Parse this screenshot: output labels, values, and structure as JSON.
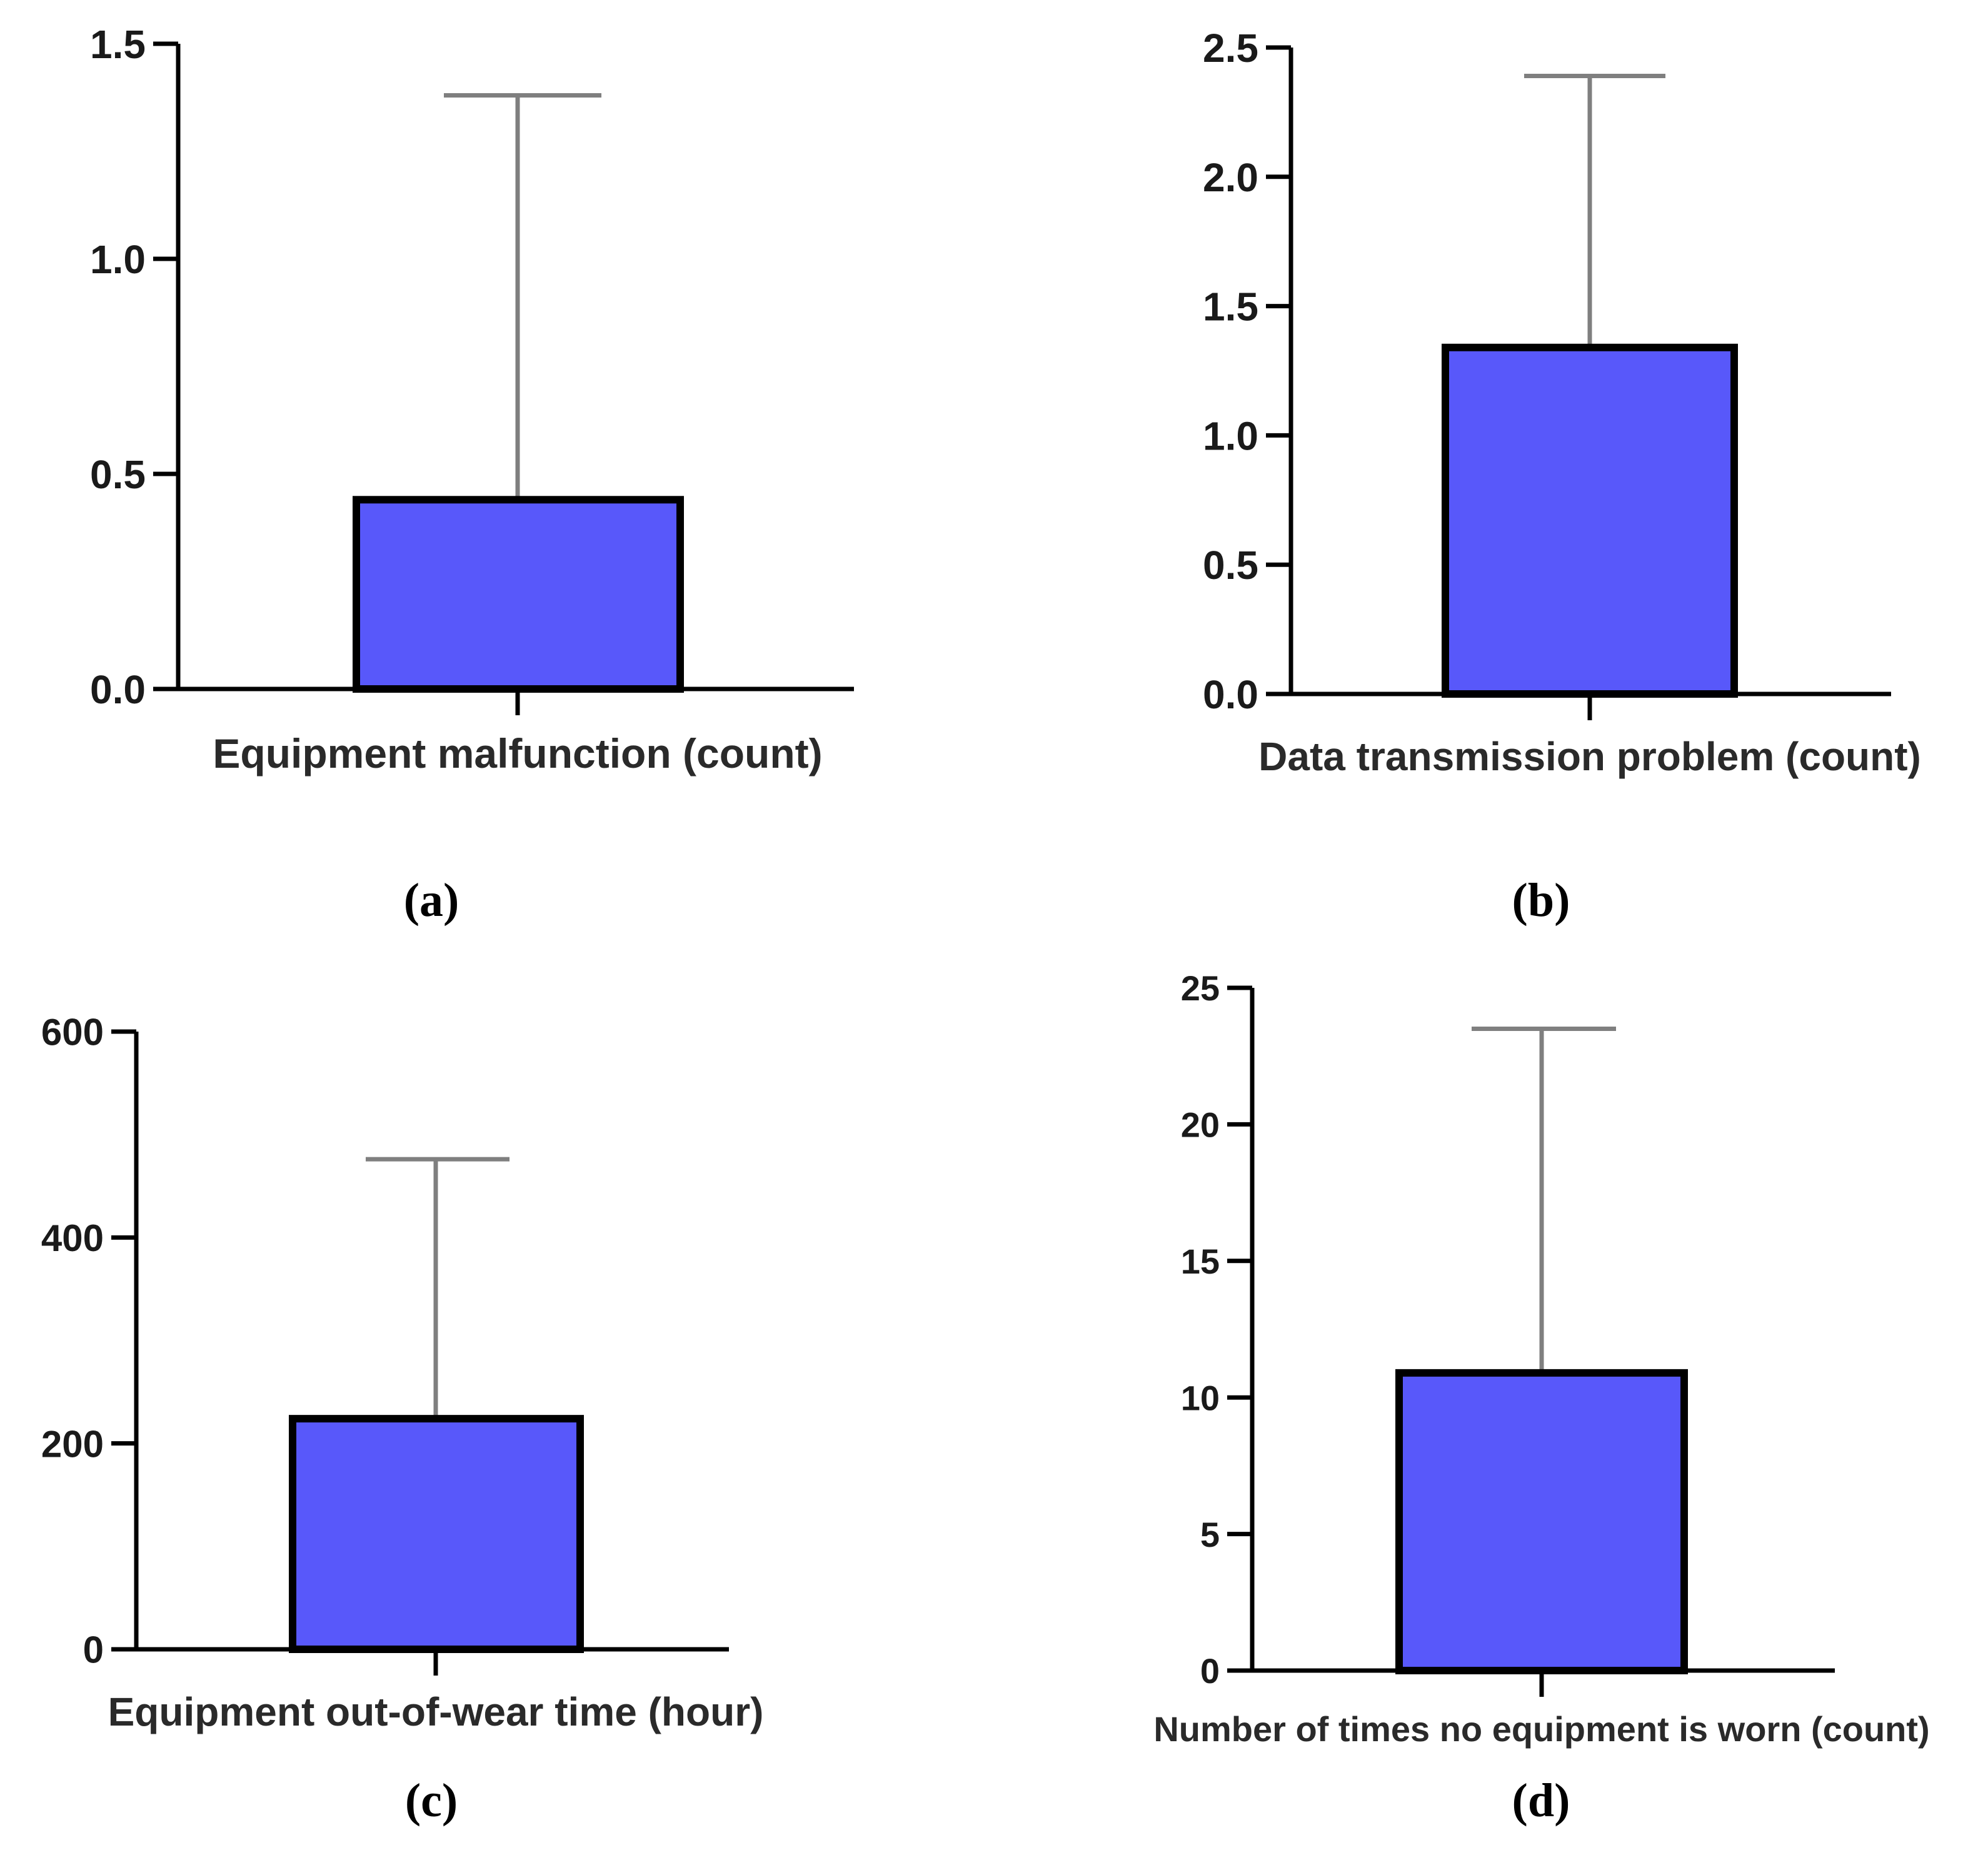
{
  "figure": {
    "bar_color": "#5858FA",
    "bar_edge_color": "#000000",
    "error_color": "#7F7F7F",
    "axis_color": "#000000"
  },
  "chart_data": [
    {
      "panel": "(a)",
      "type": "bar",
      "categories": [
        "Equipment malfunction (count)"
      ],
      "values": [
        0.44
      ],
      "error_upper": [
        1.38
      ],
      "xlabel": "Equipment malfunction (count)",
      "ylabel": "",
      "ylim": [
        0,
        1.5
      ],
      "yticks": [
        0.0,
        0.5,
        1.0,
        1.5
      ],
      "ytick_labels": [
        "0.0",
        "0.5",
        "1.0",
        "1.5"
      ]
    },
    {
      "panel": "(b)",
      "type": "bar",
      "categories": [
        "Data transmission problem (count)"
      ],
      "values": [
        1.34
      ],
      "error_upper": [
        2.39
      ],
      "xlabel": "Data transmission problem (count)",
      "ylabel": "",
      "ylim": [
        0,
        2.5
      ],
      "yticks": [
        0.0,
        0.5,
        1.0,
        1.5,
        2.0,
        2.5
      ],
      "ytick_labels": [
        "0.0",
        "0.5",
        "1.0",
        "1.5",
        "2.0",
        "2.5"
      ]
    },
    {
      "panel": "(c)",
      "type": "bar",
      "categories": [
        "Equipment out-of-wear time (hour)"
      ],
      "values": [
        224
      ],
      "error_upper": [
        476
      ],
      "xlabel": "Equipment out-of-wear time (hour)",
      "ylabel": "",
      "ylim": [
        0,
        600
      ],
      "yticks": [
        0,
        200,
        400,
        600
      ],
      "ytick_labels": [
        "0",
        "200",
        "400",
        "600"
      ]
    },
    {
      "panel": "(d)",
      "type": "bar",
      "categories": [
        "Number of times no equipment is worn (count)"
      ],
      "values": [
        10.9
      ],
      "error_upper": [
        23.5
      ],
      "xlabel": "Number of times no equipment is worn (count)",
      "ylabel": "",
      "ylim": [
        0,
        25
      ],
      "yticks": [
        0,
        5,
        10,
        15,
        20,
        25
      ],
      "ytick_labels": [
        "0",
        "5",
        "10",
        "15",
        "20",
        "25"
      ]
    }
  ]
}
